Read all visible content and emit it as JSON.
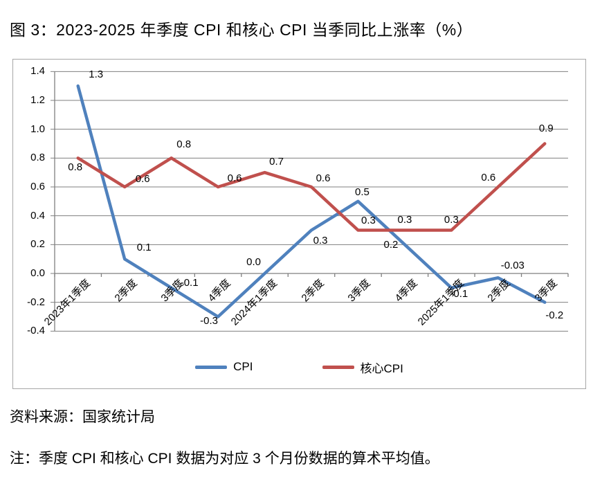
{
  "title": "图 3：2023-2025 年季度 CPI 和核心 CPI 当季同比上涨率（%）",
  "source_note": "资料来源：国家统计局",
  "footnote": "注：季度 CPI 和核心 CPI 数据为对应 3 个月份数据的算术平均值。",
  "colors": {
    "cpi": "#4F81BD",
    "core_cpi": "#C0504D",
    "grid": "#7f7f7f",
    "frame_border": "#a6a6a6"
  },
  "chart_data": {
    "type": "line",
    "title": "",
    "xlabel": "",
    "ylabel": "",
    "categories": [
      "2023年1季度",
      "2季度",
      "3季度",
      "4季度",
      "2024年1季度",
      "2季度",
      "3季度",
      "4季度",
      "2025年1季度",
      "2季度",
      "3季度"
    ],
    "series": [
      {
        "name": "CPI",
        "color": "#4F81BD",
        "values": [
          1.3,
          0.1,
          -0.1,
          -0.3,
          0.0,
          0.3,
          0.5,
          0.2,
          -0.1,
          -0.03,
          -0.2
        ],
        "labels": [
          "1.3",
          "0.1",
          "-0.1",
          "-0.3",
          "0.0",
          "0.3",
          "0.5",
          "0.2",
          "-0.1",
          "-0.03",
          "-0.2"
        ]
      },
      {
        "name": "核心CPI",
        "color": "#C0504D",
        "values": [
          0.8,
          0.6,
          0.8,
          0.6,
          0.7,
          0.6,
          0.3,
          0.3,
          0.3,
          0.6,
          0.9
        ],
        "labels": [
          "0.8",
          "0.6",
          "0.8",
          "0.6",
          "0.7",
          "0.6",
          "0.3",
          "0.3",
          "0.3",
          "0.6",
          "0.9"
        ]
      }
    ],
    "ylim": [
      -0.4,
      1.4
    ],
    "y_tick_step": 0.2,
    "y_ticks": [
      "1.4",
      "1.2",
      "1.0",
      "0.8",
      "0.6",
      "0.4",
      "0.2",
      "0.0",
      "-0.2",
      "-0.4"
    ],
    "grid": true,
    "legend_position": "bottom"
  }
}
